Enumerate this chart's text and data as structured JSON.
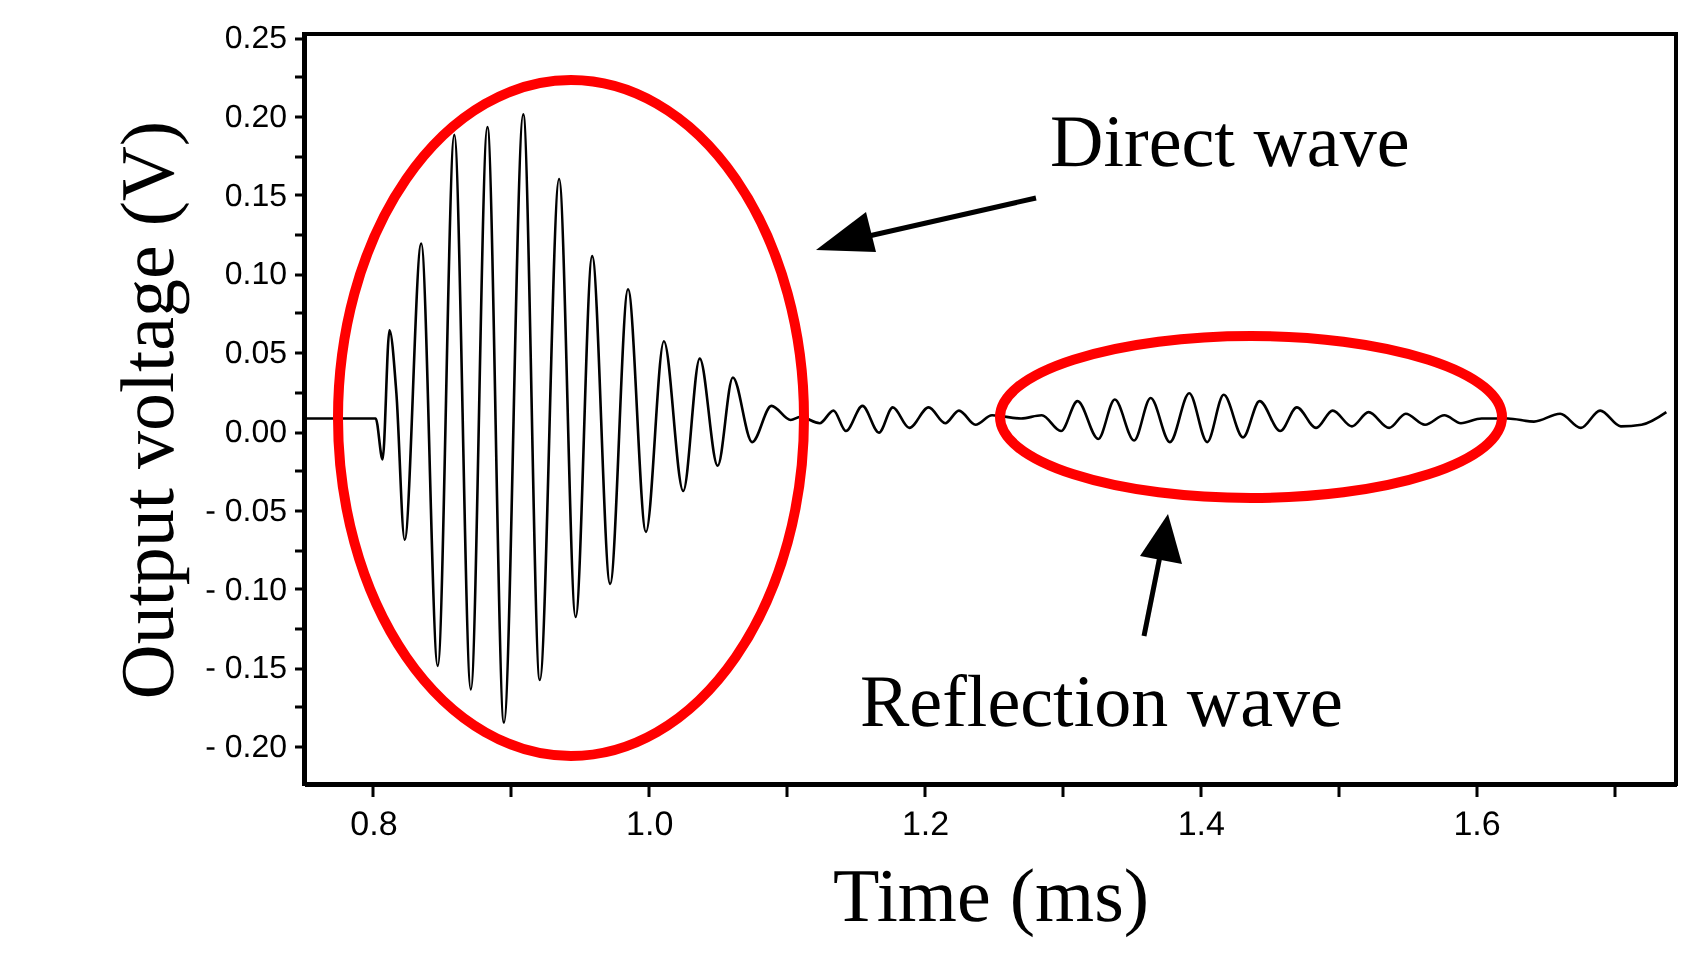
{
  "chart_data": {
    "type": "line",
    "xlabel": "Time (ms)",
    "ylabel": "Output voltage (V)",
    "color": "#000000",
    "line_style": "solid",
    "x": [
      0.752,
      0.802,
      0.807,
      0.812,
      0.817,
      0.823,
      0.835,
      0.847,
      0.859,
      0.871,
      0.883,
      0.895,
      0.909,
      0.921,
      0.935,
      0.947,
      0.959,
      0.972,
      0.985,
      0.998,
      1.011,
      1.025,
      1.037,
      1.05,
      1.061,
      1.075,
      1.089,
      1.103,
      1.11,
      1.124,
      1.134,
      1.143,
      1.155,
      1.167,
      1.177,
      1.189,
      1.203,
      1.215,
      1.225,
      1.237,
      1.249,
      1.27,
      1.285,
      1.299,
      1.311,
      1.326,
      1.338,
      1.352,
      1.364,
      1.378,
      1.392,
      1.405,
      1.417,
      1.431,
      1.443,
      1.458,
      1.47,
      1.484,
      1.496,
      1.51,
      1.522,
      1.537,
      1.549,
      1.563,
      1.577,
      1.589,
      1.604,
      1.623,
      1.642,
      1.661,
      1.676,
      1.69,
      1.705,
      1.72,
      1.738
    ],
    "values": [
      0.008,
      0.008,
      -0.018,
      0.064,
      0.024,
      -0.069,
      0.119,
      -0.149,
      0.188,
      -0.164,
      0.193,
      -0.185,
      0.201,
      -0.158,
      0.16,
      -0.118,
      0.111,
      -0.097,
      0.09,
      -0.064,
      0.057,
      -0.038,
      0.046,
      -0.022,
      0.034,
      -0.007,
      0.016,
      0.007,
      0.009,
      0.005,
      0.013,
      0.0,
      0.016,
      -0.001,
      0.015,
      0.002,
      0.015,
      0.005,
      0.013,
      0.004,
      0.01,
      0.008,
      0.01,
      0.0,
      0.019,
      -0.005,
      0.02,
      -0.006,
      0.021,
      -0.007,
      0.024,
      -0.007,
      0.023,
      -0.004,
      0.019,
      0.0,
      0.015,
      0.002,
      0.013,
      0.003,
      0.012,
      0.002,
      0.011,
      0.004,
      0.01,
      0.005,
      0.008,
      0.008,
      0.006,
      0.011,
      0.002,
      0.013,
      0.003,
      0.004,
      0.012
    ],
    "xlim": [
      0.75,
      1.745
    ],
    "xticks": [
      {
        "value": 0.8,
        "label": "0.8"
      },
      {
        "value": 0.9,
        "label": null
      },
      {
        "value": 1.0,
        "label": "1.0"
      },
      {
        "value": 1.1,
        "label": null
      },
      {
        "value": 1.2,
        "label": "1.2"
      },
      {
        "value": 1.3,
        "label": null
      },
      {
        "value": 1.4,
        "label": "1.4"
      },
      {
        "value": 1.5,
        "label": null
      },
      {
        "value": 1.6,
        "label": "1.6"
      },
      {
        "value": 1.7,
        "label": null
      }
    ],
    "ylim": [
      -0.224,
      0.252
    ],
    "yticks": [
      {
        "value": 0.25,
        "label": "0.25"
      },
      {
        "value": 0.225,
        "label": null
      },
      {
        "value": 0.2,
        "label": "0.20"
      },
      {
        "value": 0.175,
        "label": null
      },
      {
        "value": 0.15,
        "label": "0.15"
      },
      {
        "value": 0.125,
        "label": null
      },
      {
        "value": 0.1,
        "label": "0.10"
      },
      {
        "value": 0.075,
        "label": null
      },
      {
        "value": 0.05,
        "label": "0.05"
      },
      {
        "value": 0.025,
        "label": null
      },
      {
        "value": 0,
        "label": "0.00"
      },
      {
        "value": -0.025,
        "label": null
      },
      {
        "value": -0.05,
        "label": "- 0.05"
      },
      {
        "value": -0.075,
        "label": null
      },
      {
        "value": -0.1,
        "label": "- 0.10"
      },
      {
        "value": -0.125,
        "label": null
      },
      {
        "value": -0.15,
        "label": "- 0.15"
      },
      {
        "value": -0.175,
        "label": null
      },
      {
        "value": -0.2,
        "label": "- 0.20"
      }
    ],
    "annotations": [
      "Direct wave",
      "Reflection wave"
    ]
  }
}
